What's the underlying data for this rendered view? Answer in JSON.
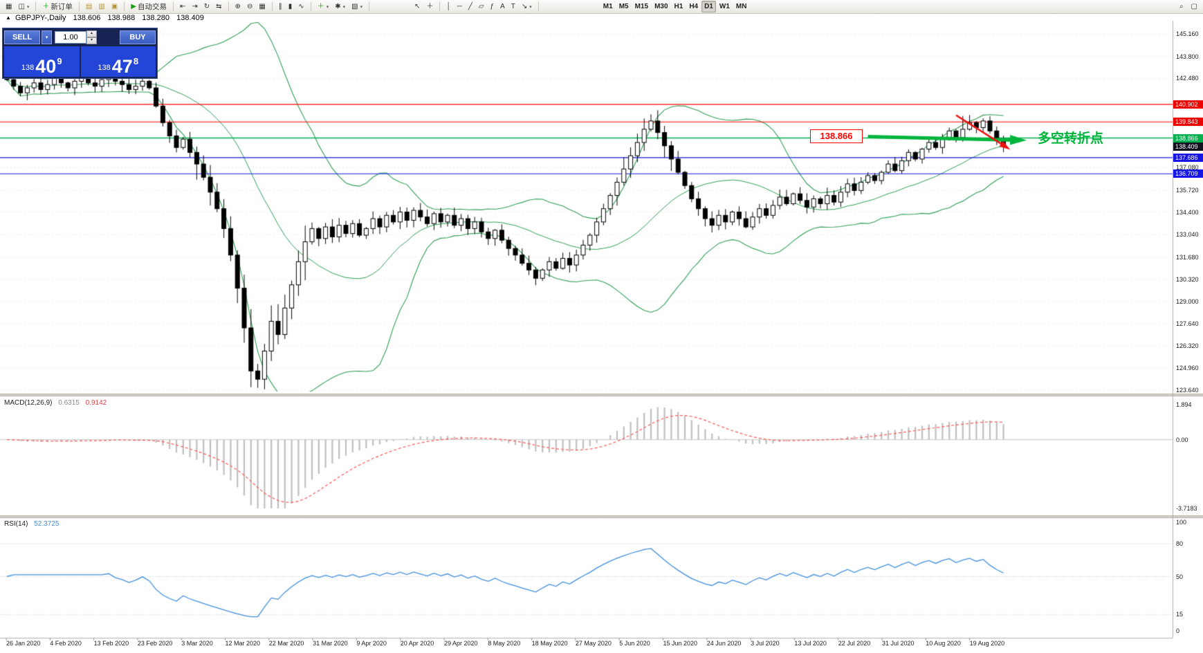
{
  "toolbar": {
    "groups": [
      {
        "name": "windows",
        "items": [
          {
            "name": "new-chart-icon",
            "glyph": "▦"
          },
          {
            "name": "profiles-icon",
            "glyph": "◫",
            "caret": true
          }
        ]
      },
      {
        "name": "order",
        "items": [
          {
            "name": "new-order-button",
            "glyph": "＋",
            "glyph_color": "#1a9e1a",
            "label": "新订单"
          }
        ]
      },
      {
        "name": "panels",
        "items": [
          {
            "name": "market-watch-icon",
            "glyph": "▤",
            "glyph_color": "#b8962e"
          },
          {
            "name": "data-window-icon",
            "glyph": "▥",
            "glyph_color": "#b8962e"
          },
          {
            "name": "terminal-icon",
            "glyph": "▣",
            "glyph_color": "#b8962e"
          }
        ]
      },
      {
        "name": "autotrade",
        "items": [
          {
            "name": "autotrading-button",
            "glyph": "▶",
            "glyph_color": "#1a9e1a",
            "label": "自动交易"
          }
        ]
      },
      {
        "name": "chart-shift",
        "items": [
          {
            "name": "indent-left-icon",
            "glyph": "⇤"
          },
          {
            "name": "indent-right-icon",
            "glyph": "⇥"
          },
          {
            "name": "autoscroll-icon",
            "glyph": "↻"
          },
          {
            "name": "chart-shift-icon",
            "glyph": "⇆"
          }
        ]
      },
      {
        "name": "zoom",
        "items": [
          {
            "name": "zoom-in-icon",
            "glyph": "⊕"
          },
          {
            "name": "zoom-out-icon",
            "glyph": "⊖"
          },
          {
            "name": "tile-windows-icon",
            "glyph": "▦"
          }
        ]
      },
      {
        "name": "chart-types",
        "items": [
          {
            "name": "bar-chart-icon",
            "glyph": "∥"
          },
          {
            "name": "candlestick-chart-icon",
            "glyph": "▮"
          },
          {
            "name": "line-chart-icon",
            "glyph": "∿"
          }
        ]
      },
      {
        "name": "indicators",
        "items": [
          {
            "name": "add-indicator-icon",
            "glyph": "＋",
            "glyph_color": "#1a9e1a",
            "caret": true
          },
          {
            "name": "indicator-settings-icon",
            "glyph": "✱",
            "caret": true
          },
          {
            "name": "templates-icon",
            "glyph": "▧",
            "caret": true
          }
        ]
      },
      {
        "name": "cursor-tools",
        "items": [
          {
            "name": "cursor-icon",
            "glyph": "↖"
          },
          {
            "name": "crosshair-icon",
            "glyph": "＋"
          }
        ]
      },
      {
        "name": "draw-tools",
        "items": [
          {
            "name": "vertical-line-icon",
            "glyph": "│"
          },
          {
            "name": "horizontal-line-icon",
            "glyph": "─"
          },
          {
            "name": "trendline-icon",
            "glyph": "╱"
          },
          {
            "name": "channel-icon",
            "glyph": "▱"
          },
          {
            "name": "fibonacci-icon",
            "glyph": "ƒ"
          },
          {
            "name": "text-icon",
            "glyph": "A"
          },
          {
            "name": "label-icon",
            "glyph": "T"
          },
          {
            "name": "shapes-icon",
            "glyph": "↘",
            "caret": true
          }
        ]
      },
      {
        "name": "timeframes",
        "items": [
          {
            "name": "tf-m1",
            "label": "M1",
            "tf": true
          },
          {
            "name": "tf-m5",
            "label": "M5",
            "tf": true
          },
          {
            "name": "tf-m15",
            "label": "M15",
            "tf": true
          },
          {
            "name": "tf-m30",
            "label": "M30",
            "tf": true
          },
          {
            "name": "tf-h1",
            "label": "H1",
            "tf": true
          },
          {
            "name": "tf-h4",
            "label": "H4",
            "tf": true
          },
          {
            "name": "tf-d1",
            "label": "D1",
            "tf": true,
            "active": true
          },
          {
            "name": "tf-w1",
            "label": "W1",
            "tf": true
          },
          {
            "name": "tf-mn",
            "label": "MN",
            "tf": true
          }
        ]
      }
    ],
    "right_items": [
      {
        "name": "search-icon",
        "glyph": "⌕"
      },
      {
        "name": "window-icon",
        "glyph": "▢"
      }
    ]
  },
  "symbol_bar": {
    "marker": "▲",
    "title": "GBPJPY-,Daily",
    "open": "138.606",
    "high": "138.988",
    "low": "138.280",
    "close": "138.409"
  },
  "trade_panel": {
    "sell_label": "SELL",
    "buy_label": "BUY",
    "volume": "1.00",
    "caret_glyph": "▾",
    "spin_up_glyph": "▴",
    "spin_down_glyph": "▾",
    "bid_big_figure": "138",
    "bid_pips": "40",
    "bid_fraction": "9",
    "ask_big_figure": "138",
    "ask_pips": "47",
    "ask_fraction": "8"
  },
  "annotations": {
    "price_label": "138.866",
    "cn_text": "多空转折点",
    "cn_color": "#00b43c"
  },
  "axis": {
    "price_labels": [
      {
        "text": "145.160",
        "value": 145.16
      },
      {
        "text": "143.800",
        "value": 143.8
      },
      {
        "text": "142.480",
        "value": 142.48
      },
      {
        "text": "137.080",
        "value": 137.08
      },
      {
        "text": "135.720",
        "value": 135.72
      },
      {
        "text": "134.400",
        "value": 134.4
      },
      {
        "text": "133.040",
        "value": 133.04
      },
      {
        "text": "131.680",
        "value": 131.68
      },
      {
        "text": "130.320",
        "value": 130.32
      },
      {
        "text": "129.000",
        "value": 129.0
      },
      {
        "text": "127.640",
        "value": 127.64
      },
      {
        "text": "126.320",
        "value": 126.32
      },
      {
        "text": "124.960",
        "value": 124.96
      },
      {
        "text": "123.640",
        "value": 123.64
      }
    ],
    "badges": [
      {
        "text": "140.902",
        "value": 140.902,
        "color": "#ee0000"
      },
      {
        "text": "139.843",
        "value": 139.843,
        "color": "#ee0000"
      },
      {
        "text": "138.866",
        "value": 138.866,
        "color": "#00b050"
      },
      {
        "text": "138.409",
        "value": 138.409,
        "color": "#10131f"
      },
      {
        "text": "137.686",
        "value": 137.686,
        "color": "#1515e6"
      },
      {
        "text": "136.709",
        "value": 136.709,
        "color": "#1515e6"
      }
    ],
    "dates": [
      "26 Jan 2020",
      "4 Feb 2020",
      "13 Feb 2020",
      "23 Feb 2020",
      "3 Mar 2020",
      "12 Mar 2020",
      "22 Mar 2020",
      "31 Mar 2020",
      "9 Apr 2020",
      "20 Apr 2020",
      "29 Apr 2020",
      "8 May 2020",
      "18 May 2020",
      "27 May 2020",
      "5 Jun 2020",
      "15 Jun 2020",
      "24 Jun 2020",
      "3 Jul 2020",
      "13 Jul 2020",
      "22 Jul 2020",
      "31 Jul 2020",
      "10 Aug 2020",
      "19 Aug 2020"
    ]
  },
  "macd": {
    "title": "MACD(12,26,9)",
    "value_main": "0.6315",
    "value_signal": "0.9142",
    "axis_labels": [
      {
        "text": "1.894",
        "value": 1.894
      },
      {
        "text": "0.00",
        "value": 0
      },
      {
        "text": "-3.7183",
        "value": -3.7183
      }
    ]
  },
  "rsi": {
    "title": "RSI(14)",
    "value": "52.3725",
    "axis_labels": [
      {
        "text": "100",
        "value": 100
      },
      {
        "text": "80",
        "value": 80
      },
      {
        "text": "50",
        "value": 50
      },
      {
        "text": "15",
        "value": 15
      },
      {
        "text": "0",
        "value": 0
      }
    ],
    "levels": [
      80,
      50,
      15
    ]
  },
  "chart_data": {
    "type": "candlestick",
    "symbol": "GBPJPY-",
    "timeframe": "Daily",
    "ohlc_display": {
      "open": 138.606,
      "high": 138.988,
      "low": 138.28,
      "close": 138.409
    },
    "price_axis_range": [
      123.64,
      145.16
    ],
    "bollinger": {
      "period": 20,
      "deviation": 1.8
    },
    "closes": [
      142.4,
      142.0,
      141.6,
      141.9,
      142.2,
      141.8,
      142.1,
      142.5,
      142.2,
      141.9,
      142.3,
      142.6,
      142.2,
      142.0,
      142.4,
      142.7,
      142.3,
      142.1,
      141.8,
      142.0,
      142.3,
      141.9,
      140.8,
      139.8,
      139.0,
      138.3,
      138.8,
      138.0,
      137.3,
      136.5,
      135.6,
      134.6,
      133.4,
      131.8,
      129.8,
      127.4,
      124.8,
      124.3,
      126.0,
      127.8,
      127.0,
      128.6,
      130.0,
      131.4,
      132.6,
      133.4,
      132.8,
      133.5,
      132.9,
      133.6,
      133.1,
      133.7,
      133.0,
      133.4,
      134.0,
      133.5,
      134.2,
      133.8,
      134.4,
      133.9,
      134.5,
      134.1,
      133.7,
      134.3,
      133.8,
      134.2,
      133.6,
      134.0,
      133.4,
      133.8,
      133.2,
      132.8,
      133.3,
      132.7,
      132.2,
      131.8,
      131.3,
      130.9,
      130.4,
      130.9,
      131.4,
      131.0,
      131.6,
      131.2,
      131.8,
      132.4,
      133.0,
      133.8,
      134.6,
      135.4,
      136.2,
      137.0,
      137.8,
      138.6,
      139.4,
      139.9,
      139.2,
      138.4,
      137.6,
      136.8,
      136.0,
      135.2,
      134.6,
      134.0,
      133.6,
      134.2,
      133.8,
      134.4,
      134.0,
      133.5,
      134.1,
      134.6,
      134.2,
      134.8,
      135.3,
      134.9,
      135.5,
      135.1,
      134.7,
      135.2,
      134.9,
      135.4,
      135.0,
      135.6,
      136.1,
      135.7,
      136.2,
      136.6,
      136.3,
      136.8,
      137.3,
      136.9,
      137.5,
      138.0,
      137.6,
      138.2,
      138.6,
      138.3,
      138.9,
      139.3,
      138.9,
      139.4,
      139.8,
      139.5,
      139.9,
      139.3,
      138.8,
      138.4
    ],
    "hlines": [
      {
        "price": 140.902,
        "color": "#ff0000",
        "width": 1.2
      },
      {
        "price": 139.843,
        "color": "#ff0000",
        "width": 1.2
      },
      {
        "price": 138.866,
        "color": "#00b050",
        "width": 1.5
      },
      {
        "price": 137.686,
        "color": "#1515e6",
        "width": 1.2
      },
      {
        "price": 136.709,
        "color": "#1515e6",
        "width": 1.2
      }
    ],
    "trend_objects": [
      {
        "name": "support-arrow-line",
        "color": "#00b43c",
        "width": 5,
        "from": {
          "bar": 127,
          "price": 138.95
        },
        "to": {
          "bar": 149.5,
          "price": 138.74
        },
        "arrow": 15
      },
      {
        "name": "breakdown-arrow-line",
        "color": "#ee1111",
        "width": 2.5,
        "from": {
          "bar": 140,
          "price": 140.25
        },
        "to": {
          "bar": 147.5,
          "price": 138.3
        },
        "arrow": 10
      }
    ]
  }
}
